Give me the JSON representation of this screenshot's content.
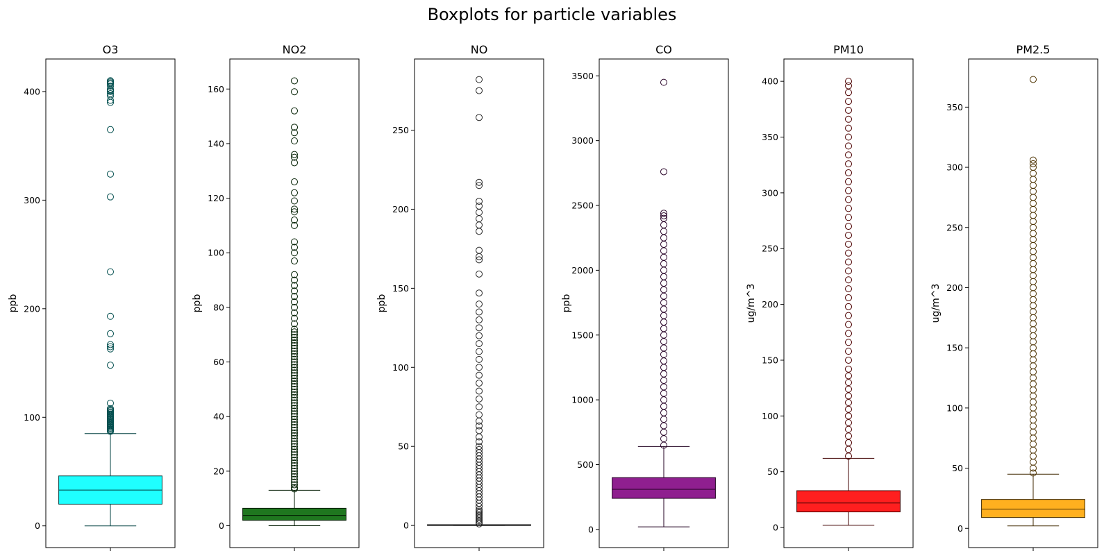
{
  "chart_data": {
    "type": "boxplot",
    "title": "Boxplots for particle variables",
    "panels": [
      {
        "name": "O3",
        "ylabel": "ppb",
        "color": "#00ffff",
        "yticks": [
          0,
          100,
          200,
          300,
          400
        ],
        "ylim": [
          -20,
          430
        ],
        "box": {
          "whisker_low": 0,
          "q1": 20,
          "median": 33,
          "q3": 46,
          "whisker_high": 85
        },
        "outliers": [
          87,
          88,
          89,
          90,
          91,
          92,
          93,
          94,
          95,
          96,
          97,
          98,
          99,
          100,
          101,
          102,
          103,
          104,
          105,
          106,
          107,
          108,
          113,
          148,
          163,
          165,
          167,
          177,
          193,
          234,
          303,
          324,
          365,
          390,
          392,
          396,
          398,
          400,
          401,
          402,
          405,
          407,
          408,
          409,
          410
        ]
      },
      {
        "name": "NO2",
        "ylabel": "ppb",
        "color": "#006400",
        "yticks": [
          0,
          20,
          40,
          60,
          80,
          100,
          120,
          140,
          160
        ],
        "ylim": [
          -8,
          171
        ],
        "box": {
          "whisker_low": 0,
          "q1": 2,
          "median": 3.8,
          "q3": 6.4,
          "whisker_high": 13
        },
        "outliers": [
          13.5,
          14,
          15,
          16,
          17,
          18,
          19,
          20,
          21,
          22,
          23,
          24,
          25,
          26,
          27,
          28,
          29,
          30,
          31,
          32,
          33,
          34,
          35,
          36,
          37,
          38,
          39,
          40,
          41,
          42,
          43,
          44,
          45,
          46,
          47,
          48,
          49,
          50,
          51,
          52,
          53,
          54,
          55,
          56,
          57,
          58,
          59,
          60,
          61,
          62,
          63,
          64,
          65,
          66,
          67,
          68,
          69,
          70,
          71,
          72,
          74,
          76,
          78,
          80,
          82,
          84,
          86,
          88,
          90,
          92,
          97,
          100,
          102,
          104,
          110,
          112,
          115,
          116,
          119,
          122,
          126,
          133,
          135,
          136,
          141,
          144,
          146,
          152,
          159,
          163
        ]
      },
      {
        "name": "NO",
        "ylabel": "ppb",
        "color": "#808080",
        "yticks": [
          0,
          50,
          100,
          150,
          200,
          250
        ],
        "ylim": [
          -14,
          295
        ],
        "box": {
          "whisker_low": 0,
          "q1": 0,
          "median": 0,
          "q3": 0.5,
          "whisker_high": 0.5
        },
        "outliers": [
          1,
          2,
          3,
          4,
          5,
          6,
          7,
          8,
          9,
          10,
          12,
          14,
          16,
          18,
          20,
          22,
          24,
          26,
          28,
          30,
          32,
          34,
          36,
          38,
          40,
          42,
          44,
          46,
          48,
          50,
          53,
          56,
          60,
          63,
          66,
          70,
          75,
          80,
          85,
          90,
          95,
          100,
          105,
          110,
          115,
          120,
          125,
          130,
          135,
          140,
          147,
          159,
          168,
          170,
          174,
          186,
          190,
          194,
          198,
          202,
          205,
          215,
          217,
          258,
          275,
          282
        ]
      },
      {
        "name": "CO",
        "ylabel": "ppb",
        "color": "#800080",
        "yticks": [
          0,
          500,
          1000,
          1500,
          2000,
          2500,
          3000,
          3500
        ],
        "ylim": [
          -140,
          3630
        ],
        "box": {
          "whisker_low": 20,
          "q1": 240,
          "median": 310,
          "q3": 400,
          "whisker_high": 640
        },
        "outliers": [
          650,
          700,
          750,
          800,
          850,
          900,
          950,
          1000,
          1050,
          1100,
          1150,
          1200,
          1250,
          1300,
          1350,
          1400,
          1450,
          1500,
          1550,
          1600,
          1650,
          1700,
          1750,
          1800,
          1850,
          1900,
          1950,
          2000,
          2050,
          2100,
          2150,
          2200,
          2250,
          2300,
          2350,
          2400,
          2420,
          2440,
          2760,
          3450
        ]
      },
      {
        "name": "PM10",
        "ylabel": "ug/m^3",
        "color": "#ff0000",
        "yticks": [
          0,
          50,
          100,
          150,
          200,
          250,
          300,
          350,
          400
        ],
        "ylim": [
          -18,
          420
        ],
        "box": {
          "whisker_low": 2,
          "q1": 14,
          "median": 22,
          "q3": 33,
          "whisker_high": 62
        },
        "outliers": [
          64,
          70,
          76,
          82,
          88,
          94,
          100,
          106,
          112,
          118,
          124,
          130,
          136,
          142,
          150,
          158,
          166,
          174,
          182,
          190,
          198,
          206,
          214,
          222,
          230,
          238,
          246,
          254,
          262,
          270,
          278,
          286,
          294,
          302,
          310,
          318,
          326,
          334,
          342,
          350,
          358,
          366,
          374,
          382,
          390,
          396,
          400
        ]
      },
      {
        "name": "PM2.5",
        "ylabel": "ug/m^3",
        "color": "#ffa500",
        "yticks": [
          0,
          50,
          100,
          150,
          200,
          250,
          300,
          350
        ],
        "ylim": [
          -16,
          390
        ],
        "box": {
          "whisker_low": 2,
          "q1": 9,
          "median": 16,
          "q3": 24,
          "whisker_high": 45
        },
        "outliers": [
          46,
          50,
          55,
          60,
          65,
          70,
          75,
          80,
          85,
          90,
          95,
          100,
          105,
          110,
          115,
          120,
          125,
          130,
          135,
          140,
          145,
          150,
          155,
          160,
          165,
          170,
          175,
          180,
          185,
          190,
          195,
          200,
          205,
          210,
          215,
          220,
          225,
          230,
          235,
          240,
          245,
          250,
          255,
          260,
          265,
          270,
          275,
          280,
          285,
          290,
          295,
          300,
          303,
          306,
          373
        ]
      }
    ]
  }
}
